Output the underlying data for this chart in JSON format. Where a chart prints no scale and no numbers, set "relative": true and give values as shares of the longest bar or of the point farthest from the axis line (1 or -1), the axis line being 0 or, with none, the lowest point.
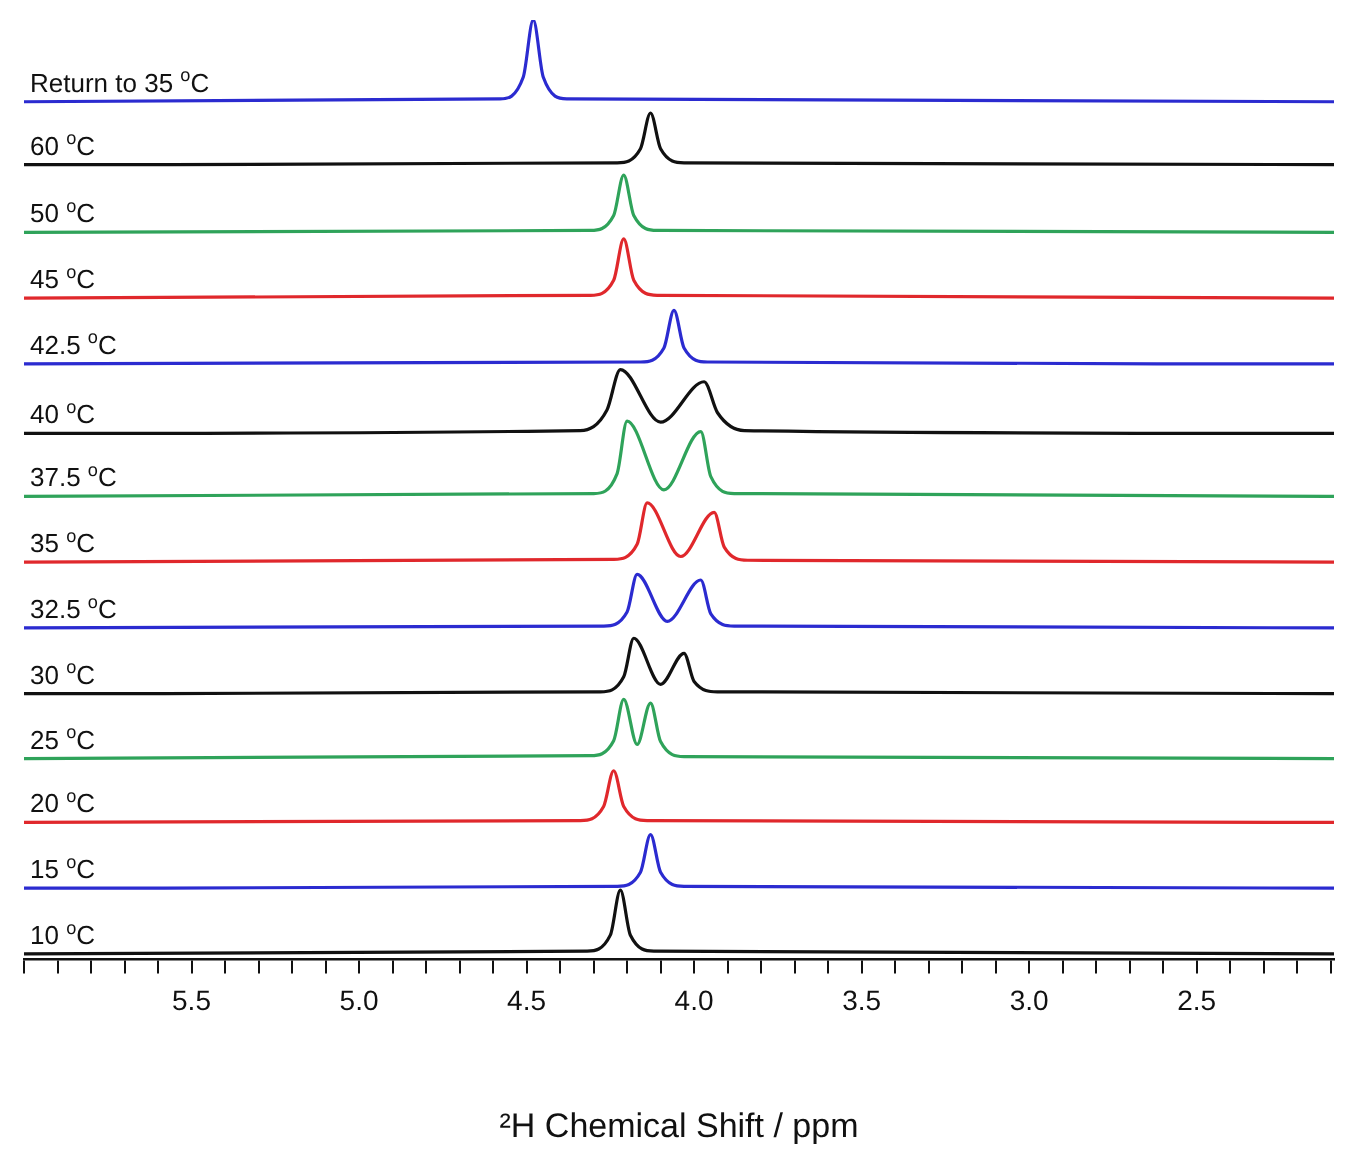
{
  "chart_data": {
    "type": "line",
    "relative": true,
    "xlabel": "²H Chemical Shift / ppm",
    "xlim": [
      6.0,
      2.09
    ],
    "xticks": [
      {
        "value": 6.0,
        "label": null
      },
      {
        "value": 5.9,
        "label": null
      },
      {
        "value": 5.8,
        "label": null
      },
      {
        "value": 5.7,
        "label": null
      },
      {
        "value": 5.6,
        "label": null
      },
      5.5,
      {
        "value": 5.4,
        "label": null
      },
      {
        "value": 5.3,
        "label": null
      },
      {
        "value": 5.2,
        "label": null
      },
      {
        "value": 5.1,
        "label": null
      },
      {
        "value": 5.0,
        "label": "5.0"
      },
      {
        "value": 4.9,
        "label": null
      },
      {
        "value": 4.8,
        "label": null
      },
      {
        "value": 4.7,
        "label": null
      },
      {
        "value": 4.6,
        "label": null
      },
      4.5,
      {
        "value": 4.4,
        "label": null
      },
      {
        "value": 4.3,
        "label": null
      },
      {
        "value": 4.2,
        "label": null
      },
      {
        "value": 4.1,
        "label": null
      },
      {
        "value": 4.0,
        "label": "4.0"
      },
      {
        "value": 3.9,
        "label": null
      },
      {
        "value": 3.8,
        "label": null
      },
      {
        "value": 3.7,
        "label": null
      },
      {
        "value": 3.6,
        "label": null
      },
      3.5,
      {
        "value": 3.4,
        "label": null
      },
      {
        "value": 3.3,
        "label": null
      },
      {
        "value": 3.2,
        "label": null
      },
      {
        "value": 3.1,
        "label": null
      },
      {
        "value": 3.0,
        "label": "3.0"
      },
      {
        "value": 2.9,
        "label": null
      },
      {
        "value": 2.8,
        "label": null
      },
      {
        "value": 2.7,
        "label": null
      },
      {
        "value": 2.6,
        "label": null
      },
      2.5,
      {
        "value": 2.4,
        "label": null
      },
      {
        "value": 2.3,
        "label": null
      },
      {
        "value": 2.2,
        "label": null
      },
      {
        "value": 2.1,
        "label": null
      }
    ],
    "grid": false,
    "legend": false,
    "tick_labels": "x",
    "marker": "none",
    "line_style": "solid",
    "series": [
      {
        "name": "Return to 35 $^{o}$C",
        "color": "#2b2bd0",
        "x": [
          6.0,
          4.58,
          4.51,
          4.48,
          4.45,
          4.38,
          2.09
        ],
        "values": [
          0.913,
          0.916,
          0.939,
          1.0,
          0.939,
          0.916,
          0.913
        ]
      },
      {
        "name": "60 $^{o}$C",
        "color": "#111111",
        "x": [
          6.0,
          4.23,
          4.16,
          4.13,
          4.1,
          4.03,
          2.09
        ],
        "values": [
          0.846,
          0.848,
          0.863,
          0.901,
          0.863,
          0.848,
          0.846
        ]
      },
      {
        "name": "50 $^{o}$C",
        "color": "#2fa35a",
        "x": [
          6.0,
          4.31,
          4.24,
          4.21,
          4.18,
          4.11,
          2.09
        ],
        "values": [
          0.774,
          0.776,
          0.792,
          0.835,
          0.792,
          0.776,
          0.774
        ]
      },
      {
        "name": "45 $^{o}$C",
        "color": "#e0282c",
        "x": [
          6.0,
          4.31,
          4.24,
          4.21,
          4.18,
          4.11,
          2.09
        ],
        "values": [
          0.704,
          0.707,
          0.723,
          0.767,
          0.723,
          0.707,
          0.704
        ]
      },
      {
        "name": "42.5 $^{o}$C",
        "color": "#2b2bd0",
        "x": [
          6.0,
          4.16,
          4.09,
          4.06,
          4.03,
          3.96,
          2.09
        ],
        "values": [
          0.634,
          0.636,
          0.651,
          0.691,
          0.651,
          0.636,
          0.634
        ]
      },
      {
        "name": "40 $^{o}$C",
        "color": "#111111",
        "x": [
          6.0,
          4.34,
          4.26,
          4.22,
          4.1,
          3.97,
          3.93,
          3.85,
          2.09
        ],
        "values": [
          0.56,
          0.563,
          0.585,
          0.628,
          0.572,
          0.615,
          0.582,
          0.563,
          0.56
        ]
      },
      {
        "name": "37.5 $^{o}$C",
        "color": "#2fa35a",
        "x": [
          6.0,
          4.3,
          4.23,
          4.2,
          4.09,
          3.98,
          3.95,
          3.88,
          2.09
        ],
        "values": [
          0.493,
          0.496,
          0.517,
          0.573,
          0.5,
          0.562,
          0.514,
          0.496,
          0.493
        ]
      },
      {
        "name": "35 $^{o}$C",
        "color": "#e0282c",
        "x": [
          6.0,
          4.24,
          4.17,
          4.14,
          4.04,
          3.94,
          3.91,
          3.84,
          2.09
        ],
        "values": [
          0.423,
          0.426,
          0.442,
          0.486,
          0.429,
          0.476,
          0.439,
          0.425,
          0.423
        ]
      },
      {
        "name": "32.5 $^{o}$C",
        "color": "#2b2bd0",
        "x": [
          6.0,
          4.27,
          4.2,
          4.17,
          4.08,
          3.98,
          3.95,
          3.88,
          2.09
        ],
        "values": [
          0.353,
          0.355,
          0.37,
          0.41,
          0.36,
          0.404,
          0.368,
          0.355,
          0.353
        ]
      },
      {
        "name": "30 $^{o}$C",
        "color": "#111111",
        "x": [
          6.0,
          4.28,
          4.21,
          4.18,
          4.1,
          4.03,
          4.0,
          3.93,
          2.09
        ],
        "values": [
          0.283,
          0.285,
          0.301,
          0.342,
          0.293,
          0.326,
          0.296,
          0.285,
          0.283
        ]
      },
      {
        "name": "25 $^{o}$C",
        "color": "#2fa35a",
        "x": [
          6.0,
          4.31,
          4.24,
          4.21,
          4.17,
          4.13,
          4.1,
          4.03,
          2.09
        ],
        "values": [
          0.214,
          0.217,
          0.233,
          0.277,
          0.229,
          0.273,
          0.232,
          0.216,
          0.214
        ]
      },
      {
        "name": "20 $^{o}$C",
        "color": "#e0282c",
        "x": [
          6.0,
          4.34,
          4.27,
          4.24,
          4.21,
          4.14,
          2.09
        ],
        "values": [
          0.146,
          0.148,
          0.163,
          0.201,
          0.163,
          0.148,
          0.146
        ]
      },
      {
        "name": "15 $^{o}$C",
        "color": "#2b2bd0",
        "x": [
          6.0,
          4.23,
          4.16,
          4.13,
          4.1,
          4.03,
          2.09
        ],
        "values": [
          0.076,
          0.078,
          0.093,
          0.133,
          0.093,
          0.078,
          0.076
        ]
      },
      {
        "name": "10 $^{o}$C",
        "color": "#111111",
        "x": [
          6.0,
          4.32,
          4.25,
          4.22,
          4.19,
          4.12,
          2.09
        ],
        "values": [
          0.006,
          0.009,
          0.026,
          0.074,
          0.026,
          0.009,
          0.006
        ]
      }
    ]
  }
}
